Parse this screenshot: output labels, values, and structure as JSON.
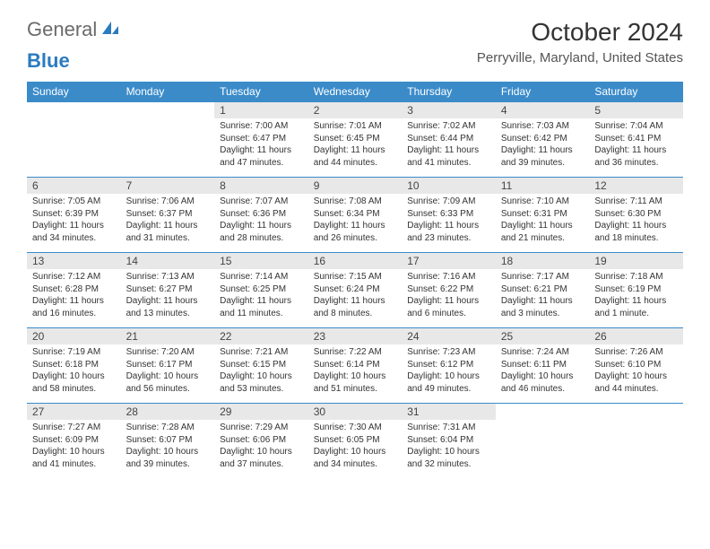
{
  "logo": {
    "main": "General",
    "accent": "Blue"
  },
  "title": "October 2024",
  "location": "Perryville, Maryland, United States",
  "day_headers": [
    "Sunday",
    "Monday",
    "Tuesday",
    "Wednesday",
    "Thursday",
    "Friday",
    "Saturday"
  ],
  "header_bg": "#3b8bc9",
  "header_fg": "#ffffff",
  "daynum_bg": "#e8e8e8",
  "border_color": "#3b8bc9",
  "weeks": [
    [
      null,
      null,
      {
        "num": "1",
        "sunrise": "Sunrise: 7:00 AM",
        "sunset": "Sunset: 6:47 PM",
        "daylight": "Daylight: 11 hours and 47 minutes."
      },
      {
        "num": "2",
        "sunrise": "Sunrise: 7:01 AM",
        "sunset": "Sunset: 6:45 PM",
        "daylight": "Daylight: 11 hours and 44 minutes."
      },
      {
        "num": "3",
        "sunrise": "Sunrise: 7:02 AM",
        "sunset": "Sunset: 6:44 PM",
        "daylight": "Daylight: 11 hours and 41 minutes."
      },
      {
        "num": "4",
        "sunrise": "Sunrise: 7:03 AM",
        "sunset": "Sunset: 6:42 PM",
        "daylight": "Daylight: 11 hours and 39 minutes."
      },
      {
        "num": "5",
        "sunrise": "Sunrise: 7:04 AM",
        "sunset": "Sunset: 6:41 PM",
        "daylight": "Daylight: 11 hours and 36 minutes."
      }
    ],
    [
      {
        "num": "6",
        "sunrise": "Sunrise: 7:05 AM",
        "sunset": "Sunset: 6:39 PM",
        "daylight": "Daylight: 11 hours and 34 minutes."
      },
      {
        "num": "7",
        "sunrise": "Sunrise: 7:06 AM",
        "sunset": "Sunset: 6:37 PM",
        "daylight": "Daylight: 11 hours and 31 minutes."
      },
      {
        "num": "8",
        "sunrise": "Sunrise: 7:07 AM",
        "sunset": "Sunset: 6:36 PM",
        "daylight": "Daylight: 11 hours and 28 minutes."
      },
      {
        "num": "9",
        "sunrise": "Sunrise: 7:08 AM",
        "sunset": "Sunset: 6:34 PM",
        "daylight": "Daylight: 11 hours and 26 minutes."
      },
      {
        "num": "10",
        "sunrise": "Sunrise: 7:09 AM",
        "sunset": "Sunset: 6:33 PM",
        "daylight": "Daylight: 11 hours and 23 minutes."
      },
      {
        "num": "11",
        "sunrise": "Sunrise: 7:10 AM",
        "sunset": "Sunset: 6:31 PM",
        "daylight": "Daylight: 11 hours and 21 minutes."
      },
      {
        "num": "12",
        "sunrise": "Sunrise: 7:11 AM",
        "sunset": "Sunset: 6:30 PM",
        "daylight": "Daylight: 11 hours and 18 minutes."
      }
    ],
    [
      {
        "num": "13",
        "sunrise": "Sunrise: 7:12 AM",
        "sunset": "Sunset: 6:28 PM",
        "daylight": "Daylight: 11 hours and 16 minutes."
      },
      {
        "num": "14",
        "sunrise": "Sunrise: 7:13 AM",
        "sunset": "Sunset: 6:27 PM",
        "daylight": "Daylight: 11 hours and 13 minutes."
      },
      {
        "num": "15",
        "sunrise": "Sunrise: 7:14 AM",
        "sunset": "Sunset: 6:25 PM",
        "daylight": "Daylight: 11 hours and 11 minutes."
      },
      {
        "num": "16",
        "sunrise": "Sunrise: 7:15 AM",
        "sunset": "Sunset: 6:24 PM",
        "daylight": "Daylight: 11 hours and 8 minutes."
      },
      {
        "num": "17",
        "sunrise": "Sunrise: 7:16 AM",
        "sunset": "Sunset: 6:22 PM",
        "daylight": "Daylight: 11 hours and 6 minutes."
      },
      {
        "num": "18",
        "sunrise": "Sunrise: 7:17 AM",
        "sunset": "Sunset: 6:21 PM",
        "daylight": "Daylight: 11 hours and 3 minutes."
      },
      {
        "num": "19",
        "sunrise": "Sunrise: 7:18 AM",
        "sunset": "Sunset: 6:19 PM",
        "daylight": "Daylight: 11 hours and 1 minute."
      }
    ],
    [
      {
        "num": "20",
        "sunrise": "Sunrise: 7:19 AM",
        "sunset": "Sunset: 6:18 PM",
        "daylight": "Daylight: 10 hours and 58 minutes."
      },
      {
        "num": "21",
        "sunrise": "Sunrise: 7:20 AM",
        "sunset": "Sunset: 6:17 PM",
        "daylight": "Daylight: 10 hours and 56 minutes."
      },
      {
        "num": "22",
        "sunrise": "Sunrise: 7:21 AM",
        "sunset": "Sunset: 6:15 PM",
        "daylight": "Daylight: 10 hours and 53 minutes."
      },
      {
        "num": "23",
        "sunrise": "Sunrise: 7:22 AM",
        "sunset": "Sunset: 6:14 PM",
        "daylight": "Daylight: 10 hours and 51 minutes."
      },
      {
        "num": "24",
        "sunrise": "Sunrise: 7:23 AM",
        "sunset": "Sunset: 6:12 PM",
        "daylight": "Daylight: 10 hours and 49 minutes."
      },
      {
        "num": "25",
        "sunrise": "Sunrise: 7:24 AM",
        "sunset": "Sunset: 6:11 PM",
        "daylight": "Daylight: 10 hours and 46 minutes."
      },
      {
        "num": "26",
        "sunrise": "Sunrise: 7:26 AM",
        "sunset": "Sunset: 6:10 PM",
        "daylight": "Daylight: 10 hours and 44 minutes."
      }
    ],
    [
      {
        "num": "27",
        "sunrise": "Sunrise: 7:27 AM",
        "sunset": "Sunset: 6:09 PM",
        "daylight": "Daylight: 10 hours and 41 minutes."
      },
      {
        "num": "28",
        "sunrise": "Sunrise: 7:28 AM",
        "sunset": "Sunset: 6:07 PM",
        "daylight": "Daylight: 10 hours and 39 minutes."
      },
      {
        "num": "29",
        "sunrise": "Sunrise: 7:29 AM",
        "sunset": "Sunset: 6:06 PM",
        "daylight": "Daylight: 10 hours and 37 minutes."
      },
      {
        "num": "30",
        "sunrise": "Sunrise: 7:30 AM",
        "sunset": "Sunset: 6:05 PM",
        "daylight": "Daylight: 10 hours and 34 minutes."
      },
      {
        "num": "31",
        "sunrise": "Sunrise: 7:31 AM",
        "sunset": "Sunset: 6:04 PM",
        "daylight": "Daylight: 10 hours and 32 minutes."
      },
      null,
      null
    ]
  ]
}
